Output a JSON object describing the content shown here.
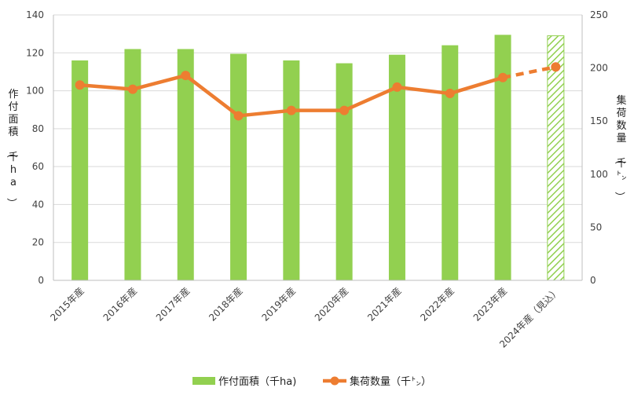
{
  "chart_data": {
    "type": "bar+line",
    "categories": [
      "2015年産",
      "2016年産",
      "2017年産",
      "2018年産",
      "2019年産",
      "2020年産",
      "2021年産",
      "2022年産",
      "2023年産",
      "2024年産（見込）"
    ],
    "bar_series": {
      "name": "作付面積（千ha)",
      "values": [
        116,
        122,
        122,
        119.5,
        116,
        114.5,
        119,
        124,
        129.5,
        129
      ],
      "color": "#92d050",
      "last_is_forecast": true
    },
    "line_series": {
      "name": "集荷数量（千㌧）",
      "values": [
        184,
        180,
        193,
        155,
        160,
        160,
        182,
        176,
        191,
        201
      ],
      "color": "#ed7d31",
      "forecast_from_index": 8
    },
    "y_left": {
      "label": "作付面積（千ha）",
      "min": 0,
      "max": 140,
      "step": 20
    },
    "y_right": {
      "label": "集荷数量（千㌧）",
      "min": 0,
      "max": 250,
      "step": 50
    },
    "grid": true,
    "legend_position": "bottom"
  }
}
